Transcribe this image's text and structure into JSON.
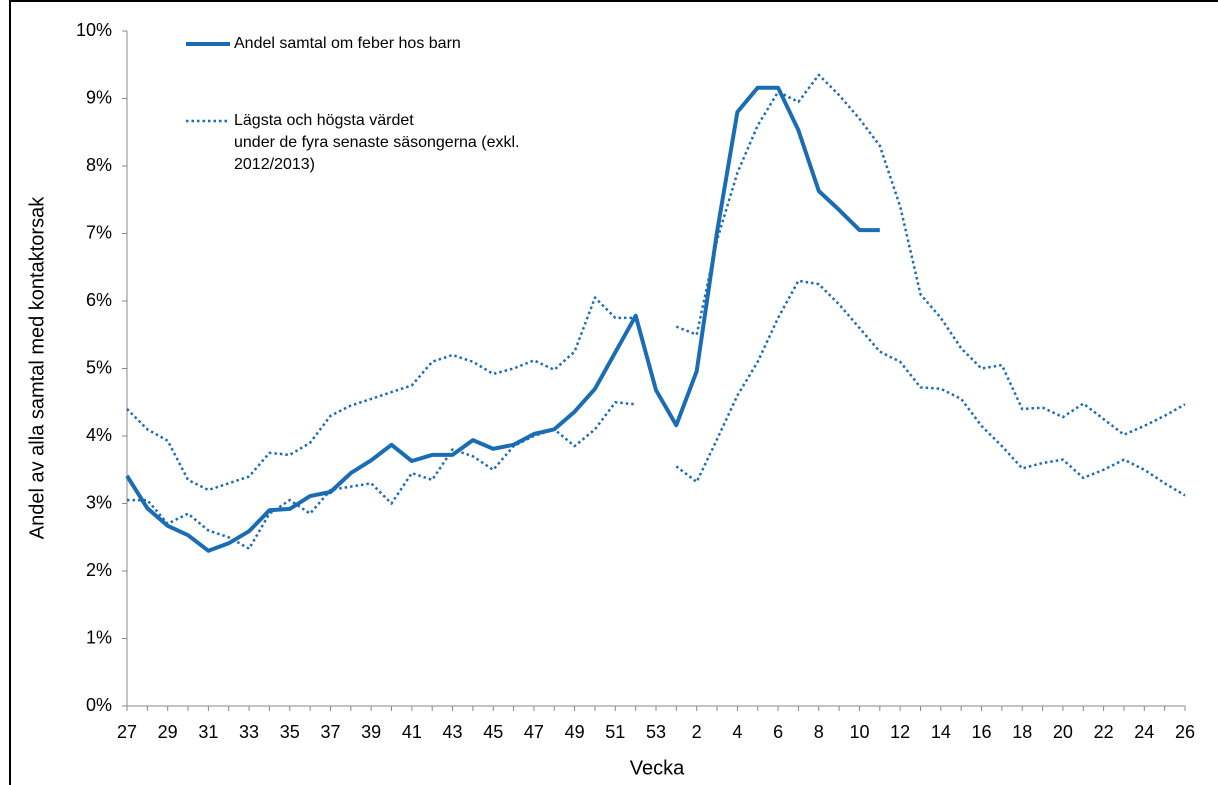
{
  "chart_data": {
    "type": "line",
    "x_label": "Vecka",
    "y_label": "Andel av alla samtal med kontaktorsak",
    "categories": [
      "27",
      null,
      "29",
      null,
      "31",
      null,
      "33",
      null,
      "35",
      null,
      "37",
      null,
      "39",
      null,
      "41",
      null,
      "43",
      null,
      "45",
      null,
      "47",
      null,
      "49",
      null,
      "51",
      null,
      "53",
      null,
      "2",
      null,
      "4",
      null,
      "6",
      null,
      "8",
      null,
      "10",
      null,
      "12",
      null,
      "14",
      null,
      "16",
      null,
      "18",
      null,
      "20",
      null,
      "22",
      null,
      "24",
      null,
      "26"
    ],
    "ylim": [
      0,
      10
    ],
    "yticks": [
      {
        "value": 0,
        "label": "0%"
      },
      {
        "value": 1,
        "label": "1%"
      },
      {
        "value": 2,
        "label": "2%"
      },
      {
        "value": 3,
        "label": "3%"
      },
      {
        "value": 4,
        "label": "4%"
      },
      {
        "value": 5,
        "label": "5%"
      },
      {
        "value": 6,
        "label": "6%"
      },
      {
        "value": 7,
        "label": "7%"
      },
      {
        "value": 8,
        "label": "8%"
      },
      {
        "value": 9,
        "label": "9%"
      },
      {
        "value": 10,
        "label": "10%"
      }
    ],
    "series": [
      {
        "name": "Andel samtal om feber hos barn",
        "color": "#1a6cb4",
        "style": "solid",
        "values": [
          3.41,
          2.93,
          2.67,
          2.53,
          2.3,
          2.41,
          2.59,
          2.9,
          2.92,
          3.11,
          3.17,
          3.45,
          3.64,
          3.87,
          3.63,
          3.72,
          3.72,
          3.94,
          3.81,
          3.87,
          4.03,
          4.1,
          4.36,
          4.7,
          5.24,
          5.78,
          4.68,
          4.16,
          4.96,
          7.02,
          8.8,
          9.16,
          9.16,
          8.53,
          7.63,
          7.35,
          7.05,
          7.05,
          null,
          null,
          null,
          null,
          null,
          null,
          null,
          null,
          null,
          null,
          null,
          null,
          null,
          null,
          null
        ]
      },
      {
        "name": "Lägsta och högsta värdet\nunder de fyra senaste säsongerna (exkl.\n2012/2013)",
        "color": "#1a6cb4",
        "style": "dotted",
        "values": [
          4.4,
          4.1,
          3.93,
          3.35,
          3.2,
          3.3,
          3.4,
          3.75,
          3.72,
          3.9,
          4.3,
          4.45,
          4.55,
          4.65,
          4.75,
          5.1,
          5.2,
          5.1,
          4.92,
          5.0,
          5.12,
          4.98,
          5.25,
          6.05,
          5.75,
          5.75,
          null,
          5.62,
          5.5,
          6.9,
          7.9,
          8.6,
          9.1,
          8.95,
          9.35,
          9.05,
          8.7,
          8.3,
          7.4,
          6.1,
          5.75,
          5.3,
          5.0,
          5.05,
          4.4,
          4.42,
          4.28,
          4.48,
          4.25,
          4.02,
          4.15,
          4.3,
          4.47
        ]
      },
      {
        "color": "#1a6cb4",
        "style": "dotted",
        "values": [
          3.05,
          3.05,
          2.7,
          2.85,
          2.6,
          2.5,
          2.33,
          2.85,
          3.05,
          2.85,
          3.2,
          3.25,
          3.3,
          3.0,
          3.45,
          3.35,
          3.8,
          3.7,
          3.5,
          3.85,
          4.0,
          4.1,
          3.85,
          4.1,
          4.5,
          4.47,
          null,
          3.55,
          3.32,
          3.95,
          4.6,
          5.1,
          5.75,
          6.3,
          6.25,
          5.95,
          5.6,
          5.25,
          5.1,
          4.72,
          4.7,
          4.55,
          4.15,
          3.85,
          3.52,
          3.6,
          3.65,
          3.38,
          3.5,
          3.65,
          3.5,
          3.3,
          3.12
        ]
      }
    ]
  }
}
